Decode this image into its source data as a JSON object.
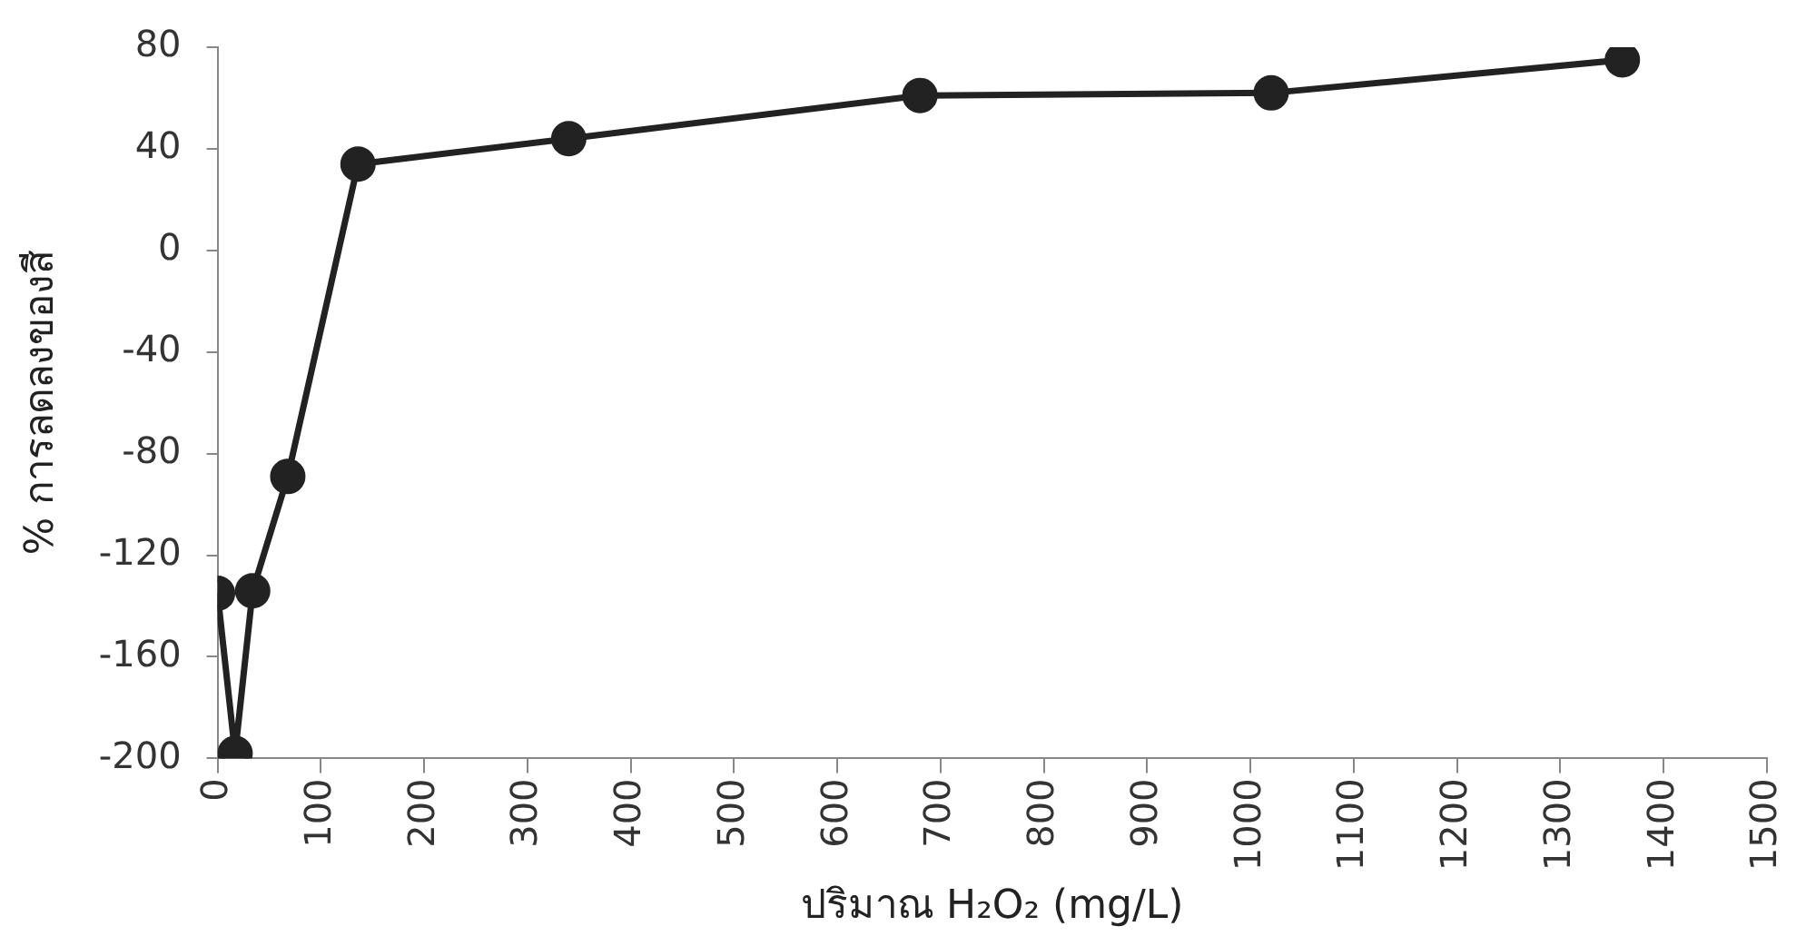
{
  "chart_data": {
    "type": "line",
    "xlabel": "ปริมาณ H₂O₂ (mg/L)",
    "ylabel": "% การลดลงของสี",
    "x": [
      0,
      17,
      34,
      68,
      136,
      340,
      680,
      1020,
      1360
    ],
    "series": [
      {
        "color": "#222222",
        "values": [
          -135,
          -198,
          -134,
          -89,
          34,
          44,
          61,
          62,
          75
        ]
      }
    ],
    "xlim": [
      0,
      1500
    ],
    "xticks": [
      0,
      100,
      200,
      300,
      400,
      500,
      600,
      700,
      800,
      900,
      1000,
      1100,
      1200,
      1300,
      1400,
      1500
    ],
    "ylim": [
      -200,
      80
    ],
    "yticks": [
      -200,
      -160,
      -120,
      -80,
      -40,
      0,
      40,
      80
    ],
    "grid": false,
    "legend": false,
    "marker": "circle",
    "line_style": "solid"
  }
}
